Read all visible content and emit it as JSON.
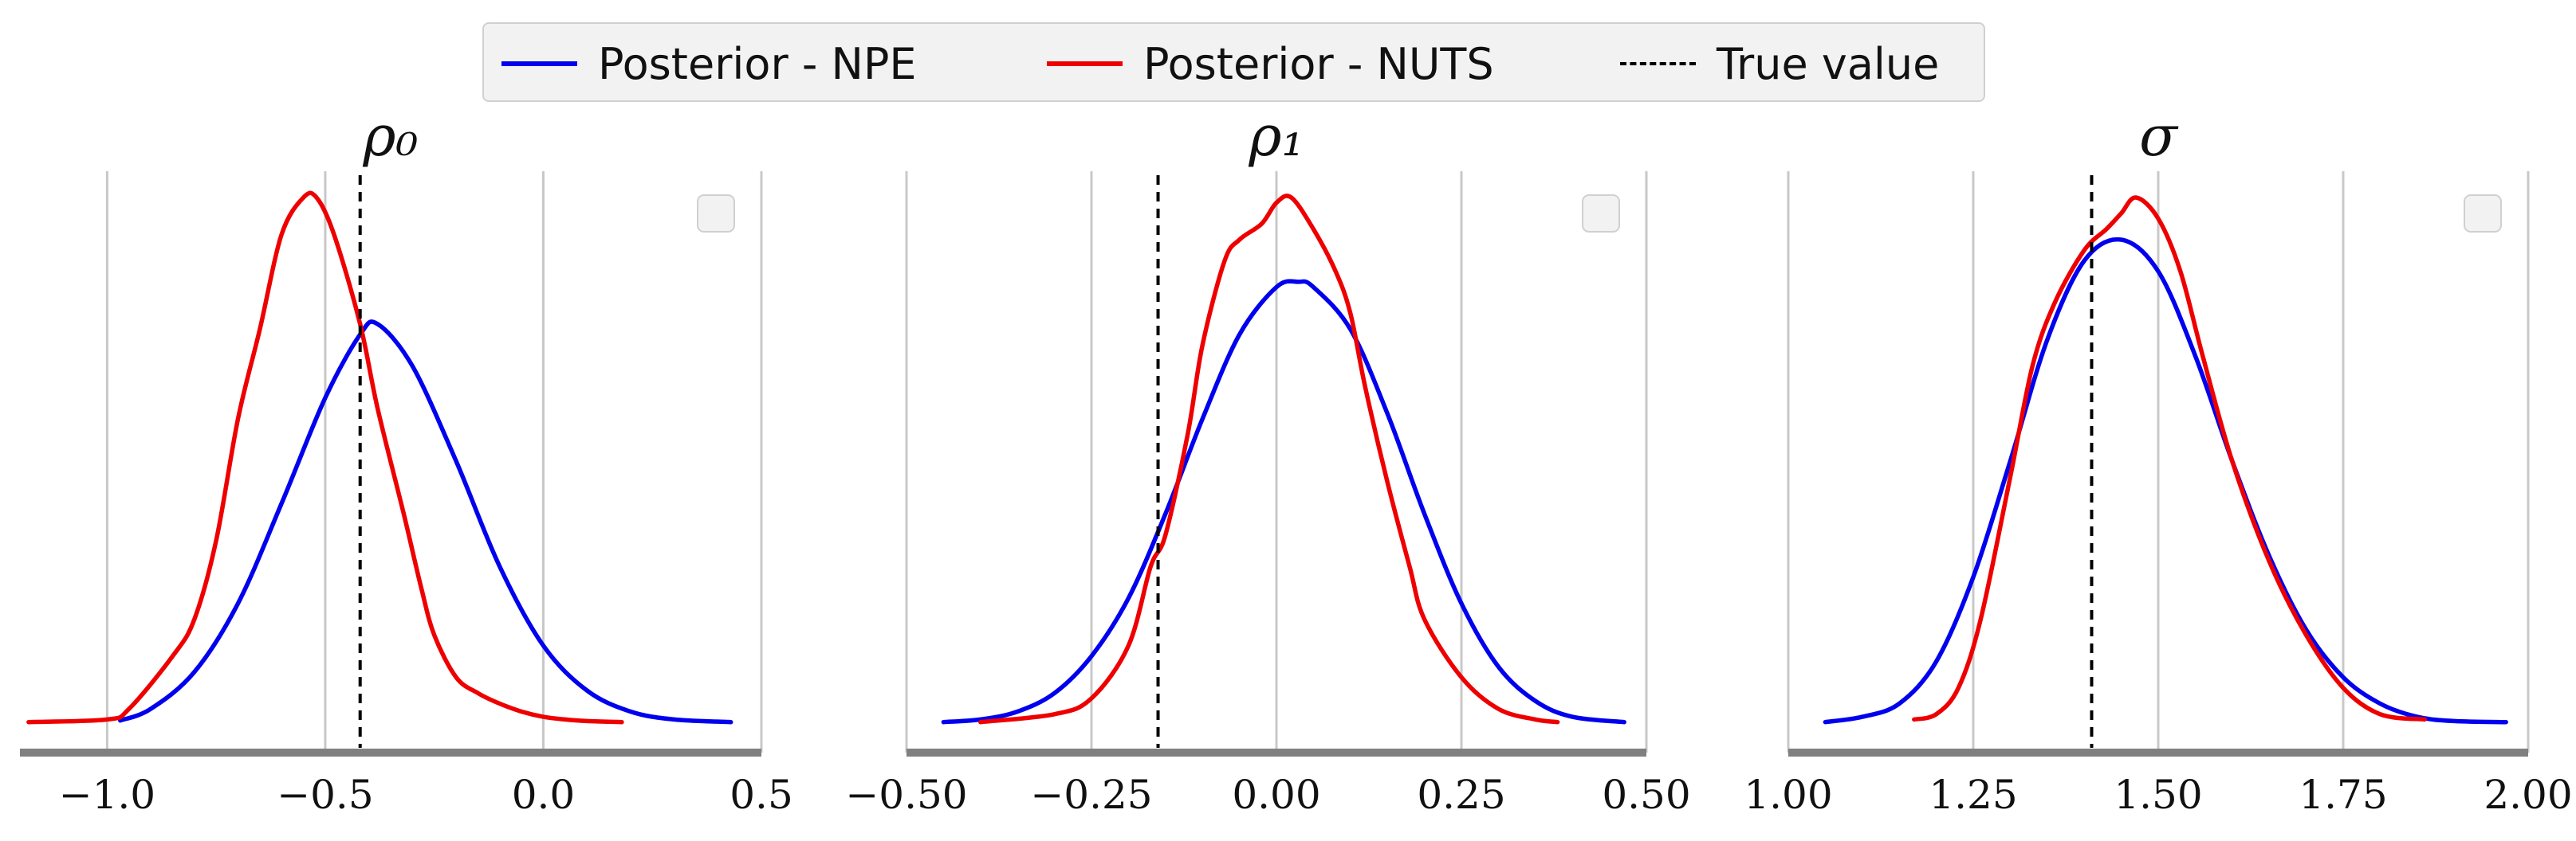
{
  "legend": {
    "items": [
      {
        "label": "Posterior - NPE",
        "color": "#0000ee",
        "style": "solid"
      },
      {
        "label": "Posterior - NUTS",
        "color": "#ee0000",
        "style": "solid"
      },
      {
        "label": "True value",
        "color": "#000000",
        "style": "dashed"
      }
    ]
  },
  "chart_data": [
    {
      "type": "line",
      "title": "ρ₀",
      "xlim": [
        -1.2,
        0.5
      ],
      "xticks": [
        -1.0,
        -0.5,
        0.0,
        0.5
      ],
      "xtick_labels": [
        "−1.0",
        "−0.5",
        "0.0",
        "0.5"
      ],
      "grid": "vertical",
      "true_value": -0.42,
      "series": [
        {
          "name": "Posterior - NPE",
          "color": "#0000ee",
          "x": [
            -0.97,
            -0.9,
            -0.8,
            -0.7,
            -0.6,
            -0.5,
            -0.42,
            -0.38,
            -0.3,
            -0.2,
            -0.1,
            0.0,
            0.1,
            0.2,
            0.3,
            0.43
          ],
          "y": [
            0.008,
            0.03,
            0.1,
            0.23,
            0.42,
            0.62,
            0.74,
            0.76,
            0.68,
            0.5,
            0.3,
            0.15,
            0.065,
            0.025,
            0.01,
            0.005
          ]
        },
        {
          "name": "Posterior - NUTS",
          "color": "#ee0000",
          "x": [
            -1.18,
            -1.0,
            -0.95,
            -0.85,
            -0.8,
            -0.75,
            -0.7,
            -0.65,
            -0.6,
            -0.55,
            -0.52,
            -0.48,
            -0.42,
            -0.38,
            -0.32,
            -0.28,
            -0.25,
            -0.2,
            -0.15,
            -0.1,
            -0.05,
            0.0,
            0.05,
            0.1,
            0.18
          ],
          "y": [
            0.005,
            0.01,
            0.03,
            0.13,
            0.2,
            0.35,
            0.58,
            0.75,
            0.93,
            1.0,
            1.0,
            0.93,
            0.76,
            0.6,
            0.4,
            0.26,
            0.17,
            0.09,
            0.06,
            0.04,
            0.025,
            0.015,
            0.01,
            0.007,
            0.005
          ]
        }
      ]
    },
    {
      "type": "line",
      "title": "ρ₁",
      "xlim": [
        -0.5,
        0.5
      ],
      "xticks": [
        -0.5,
        -0.25,
        0.0,
        0.25,
        0.5
      ],
      "xtick_labels": [
        "−0.50",
        "−0.25",
        "0.00",
        "0.25",
        "0.50"
      ],
      "grid": "vertical",
      "true_value": -0.16,
      "series": [
        {
          "name": "Posterior - NPE",
          "color": "#0000ee",
          "x": [
            -0.45,
            -0.4,
            -0.35,
            -0.3,
            -0.25,
            -0.2,
            -0.15,
            -0.1,
            -0.05,
            0.0,
            0.03,
            0.05,
            0.1,
            0.15,
            0.2,
            0.25,
            0.3,
            0.35,
            0.4,
            0.47
          ],
          "y": [
            0.005,
            0.01,
            0.025,
            0.06,
            0.13,
            0.24,
            0.4,
            0.58,
            0.74,
            0.83,
            0.84,
            0.83,
            0.75,
            0.59,
            0.4,
            0.23,
            0.11,
            0.045,
            0.015,
            0.005
          ]
        },
        {
          "name": "Posterior - NUTS",
          "color": "#ee0000",
          "x": [
            -0.4,
            -0.3,
            -0.25,
            -0.2,
            -0.17,
            -0.15,
            -0.12,
            -0.1,
            -0.07,
            -0.05,
            -0.02,
            0.0,
            0.02,
            0.05,
            0.08,
            0.1,
            0.12,
            0.15,
            0.18,
            0.2,
            0.25,
            0.3,
            0.35,
            0.38
          ],
          "y": [
            0.005,
            0.02,
            0.05,
            0.15,
            0.3,
            0.36,
            0.55,
            0.72,
            0.88,
            0.92,
            0.95,
            0.99,
            1.0,
            0.94,
            0.86,
            0.78,
            0.64,
            0.46,
            0.3,
            0.2,
            0.09,
            0.03,
            0.01,
            0.005
          ]
        }
      ]
    },
    {
      "type": "line",
      "title": "σ",
      "xlim": [
        1.0,
        2.0
      ],
      "xticks": [
        1.0,
        1.25,
        1.5,
        1.75,
        2.0
      ],
      "xtick_labels": [
        "1.00",
        "1.25",
        "1.50",
        "1.75",
        "2.00"
      ],
      "grid": "vertical",
      "true_value": 1.41,
      "series": [
        {
          "name": "Posterior - NPE",
          "color": "#0000ee",
          "x": [
            1.05,
            1.1,
            1.15,
            1.2,
            1.25,
            1.3,
            1.35,
            1.4,
            1.45,
            1.5,
            1.55,
            1.6,
            1.65,
            1.7,
            1.75,
            1.8,
            1.85,
            1.9,
            1.97
          ],
          "y": [
            0.005,
            0.015,
            0.04,
            0.12,
            0.28,
            0.5,
            0.73,
            0.88,
            0.92,
            0.86,
            0.7,
            0.5,
            0.32,
            0.18,
            0.09,
            0.04,
            0.015,
            0.007,
            0.005
          ]
        },
        {
          "name": "Posterior - NUTS",
          "color": "#ee0000",
          "x": [
            1.17,
            1.2,
            1.23,
            1.26,
            1.3,
            1.33,
            1.36,
            1.4,
            1.43,
            1.45,
            1.47,
            1.5,
            1.53,
            1.56,
            1.6,
            1.65,
            1.7,
            1.75,
            1.8,
            1.86
          ],
          "y": [
            0.01,
            0.02,
            0.07,
            0.2,
            0.47,
            0.68,
            0.8,
            0.9,
            0.94,
            0.97,
            1.0,
            0.96,
            0.86,
            0.7,
            0.5,
            0.31,
            0.17,
            0.07,
            0.02,
            0.01
          ]
        }
      ]
    }
  ]
}
